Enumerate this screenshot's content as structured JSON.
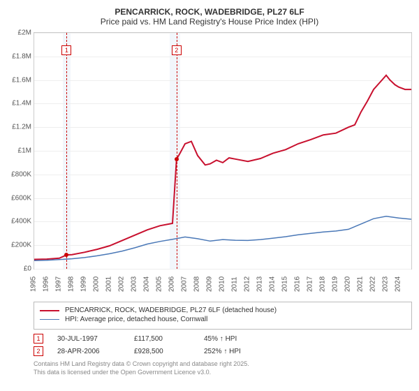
{
  "title": "PENCARRICK, ROCK, WADEBRIDGE, PL27 6LF",
  "subtitle": "Price paid vs. HM Land Registry's House Price Index (HPI)",
  "chart": {
    "type": "line",
    "background_color": "#ffffff",
    "grid_color": "#eeeeee",
    "axis_color": "#cccccc",
    "x": {
      "min": 1995,
      "max": 2025,
      "ticks": [
        1995,
        1996,
        1997,
        1998,
        1999,
        2000,
        2001,
        2002,
        2003,
        2004,
        2005,
        2006,
        2007,
        2008,
        2009,
        2010,
        2011,
        2012,
        2013,
        2014,
        2015,
        2016,
        2017,
        2018,
        2019,
        2020,
        2021,
        2022,
        2023,
        2024
      ]
    },
    "y": {
      "min": 0,
      "max": 2000000,
      "tick_step": 200000,
      "ticks": [
        0,
        200000,
        400000,
        600000,
        800000,
        1000000,
        1200000,
        1400000,
        1600000,
        1800000,
        2000000
      ],
      "tick_labels": [
        "£0",
        "£200K",
        "£400K",
        "£600K",
        "£800K",
        "£1M",
        "£1.2M",
        "£1.4M",
        "£1.6M",
        "£1.8M",
        "£2M"
      ]
    },
    "shaded_bands": [
      {
        "from": 1997.3,
        "to": 1997.9,
        "color": "#e8eef7"
      },
      {
        "from": 2005.8,
        "to": 2006.6,
        "color": "#e8eef7"
      }
    ],
    "series": [
      {
        "name": "property",
        "label": "PENCARRICK, ROCK, WADEBRIDGE, PL27 6LF (detached house)",
        "color": "#c8102e",
        "line_width": 2,
        "data": [
          [
            1995,
            80000
          ],
          [
            1996,
            82000
          ],
          [
            1997,
            90000
          ],
          [
            1997.58,
            117500
          ],
          [
            1998,
            120000
          ],
          [
            1999,
            140000
          ],
          [
            2000,
            165000
          ],
          [
            2001,
            195000
          ],
          [
            2002,
            240000
          ],
          [
            2003,
            285000
          ],
          [
            2004,
            330000
          ],
          [
            2005,
            365000
          ],
          [
            2006,
            385000
          ],
          [
            2006.32,
            928500
          ],
          [
            2006.6,
            980000
          ],
          [
            2007,
            1060000
          ],
          [
            2007.5,
            1080000
          ],
          [
            2008,
            960000
          ],
          [
            2008.6,
            880000
          ],
          [
            2009,
            890000
          ],
          [
            2009.5,
            920000
          ],
          [
            2010,
            900000
          ],
          [
            2010.5,
            940000
          ],
          [
            2011,
            930000
          ],
          [
            2012,
            910000
          ],
          [
            2013,
            935000
          ],
          [
            2014,
            980000
          ],
          [
            2015,
            1010000
          ],
          [
            2016,
            1060000
          ],
          [
            2017,
            1095000
          ],
          [
            2018,
            1135000
          ],
          [
            2019,
            1150000
          ],
          [
            2020,
            1200000
          ],
          [
            2020.5,
            1220000
          ],
          [
            2021,
            1330000
          ],
          [
            2021.5,
            1420000
          ],
          [
            2022,
            1520000
          ],
          [
            2022.5,
            1580000
          ],
          [
            2023,
            1640000
          ],
          [
            2023.3,
            1600000
          ],
          [
            2023.7,
            1560000
          ],
          [
            2024,
            1540000
          ],
          [
            2024.5,
            1520000
          ],
          [
            2025,
            1520000
          ]
        ]
      },
      {
        "name": "hpi",
        "label": "HPI: Average price, detached house, Cornwall",
        "color": "#4a78b7",
        "line_width": 1.5,
        "data": [
          [
            1995,
            70000
          ],
          [
            1996,
            72000
          ],
          [
            1997,
            78000
          ],
          [
            1998,
            85000
          ],
          [
            1999,
            95000
          ],
          [
            2000,
            110000
          ],
          [
            2001,
            128000
          ],
          [
            2002,
            150000
          ],
          [
            2003,
            178000
          ],
          [
            2004,
            210000
          ],
          [
            2005,
            232000
          ],
          [
            2006,
            250000
          ],
          [
            2007,
            270000
          ],
          [
            2008,
            255000
          ],
          [
            2009,
            235000
          ],
          [
            2010,
            248000
          ],
          [
            2011,
            242000
          ],
          [
            2012,
            240000
          ],
          [
            2013,
            248000
          ],
          [
            2014,
            260000
          ],
          [
            2015,
            272000
          ],
          [
            2016,
            288000
          ],
          [
            2017,
            300000
          ],
          [
            2018,
            312000
          ],
          [
            2019,
            320000
          ],
          [
            2020,
            335000
          ],
          [
            2021,
            380000
          ],
          [
            2022,
            425000
          ],
          [
            2023,
            445000
          ],
          [
            2024,
            430000
          ],
          [
            2025,
            420000
          ]
        ]
      }
    ],
    "event_markers": [
      {
        "n": "1",
        "x": 1997.58,
        "y": 117500
      },
      {
        "n": "2",
        "x": 2006.32,
        "y": 928500
      }
    ]
  },
  "legend": {
    "series": [
      {
        "label": "PENCARRICK, ROCK, WADEBRIDGE, PL27 6LF (detached house)",
        "color": "#c8102e"
      },
      {
        "label": "HPI: Average price, detached house, Cornwall",
        "color": "#4a78b7"
      }
    ]
  },
  "events": [
    {
      "n": "1",
      "date": "30-JUL-1997",
      "price": "£117,500",
      "pct": "45% ↑ HPI"
    },
    {
      "n": "2",
      "date": "28-APR-2006",
      "price": "£928,500",
      "pct": "252% ↑ HPI"
    }
  ],
  "footer": {
    "line1": "Contains HM Land Registry data © Crown copyright and database right 2025.",
    "line2": "This data is licensed under the Open Government Licence v3.0."
  }
}
